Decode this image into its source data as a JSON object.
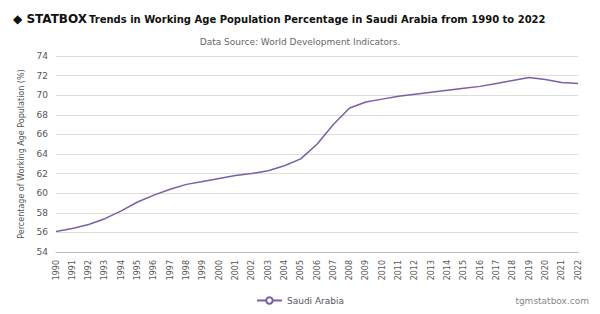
{
  "chart_data": {
    "type": "line",
    "title": "Trends in Working Age Population Percentage in Saudi Arabia from 1990 to 2022",
    "subtitle": "Data Source: World Development Indicators.",
    "y_label": "Percentage of Working Age Population (%)",
    "annotations": [
      "◆ STATBOX",
      "tgmstatbox.com"
    ],
    "x": [
      1990,
      1991,
      1992,
      1993,
      1994,
      1995,
      1996,
      1997,
      1998,
      1999,
      2000,
      2001,
      2002,
      2003,
      2004,
      2005,
      2006,
      2007,
      2008,
      2009,
      2010,
      2011,
      2012,
      2013,
      2014,
      2015,
      2016,
      2017,
      2018,
      2019,
      2020,
      2021,
      2022
    ],
    "series": [
      {
        "name": "Saudi Arabia",
        "color": "#7b5ea7",
        "values": [
          56.1,
          56.4,
          56.8,
          57.4,
          58.2,
          59.1,
          59.8,
          60.4,
          60.9,
          61.2,
          61.5,
          61.8,
          62.0,
          62.3,
          62.8,
          63.5,
          65.0,
          67.0,
          68.7,
          69.3,
          69.6,
          69.9,
          70.1,
          70.3,
          70.5,
          70.7,
          70.9,
          71.2,
          71.5,
          71.8,
          71.6,
          71.3,
          71.2
        ]
      }
    ],
    "xlim": [
      1990,
      2022
    ],
    "xticks": [
      1990,
      1991,
      1992,
      1993,
      1994,
      1995,
      1996,
      1997,
      1998,
      1999,
      2000,
      2001,
      2002,
      2003,
      2004,
      2005,
      2006,
      2007,
      2008,
      2009,
      2010,
      2011,
      2012,
      2013,
      2014,
      2015,
      2016,
      2017,
      2018,
      2019,
      2020,
      2021,
      2022
    ],
    "ylim": [
      54,
      74
    ],
    "yticks": [
      54,
      56,
      58,
      60,
      62,
      64,
      66,
      68,
      70,
      72,
      74
    ],
    "grid": true,
    "legend": "bottom"
  }
}
